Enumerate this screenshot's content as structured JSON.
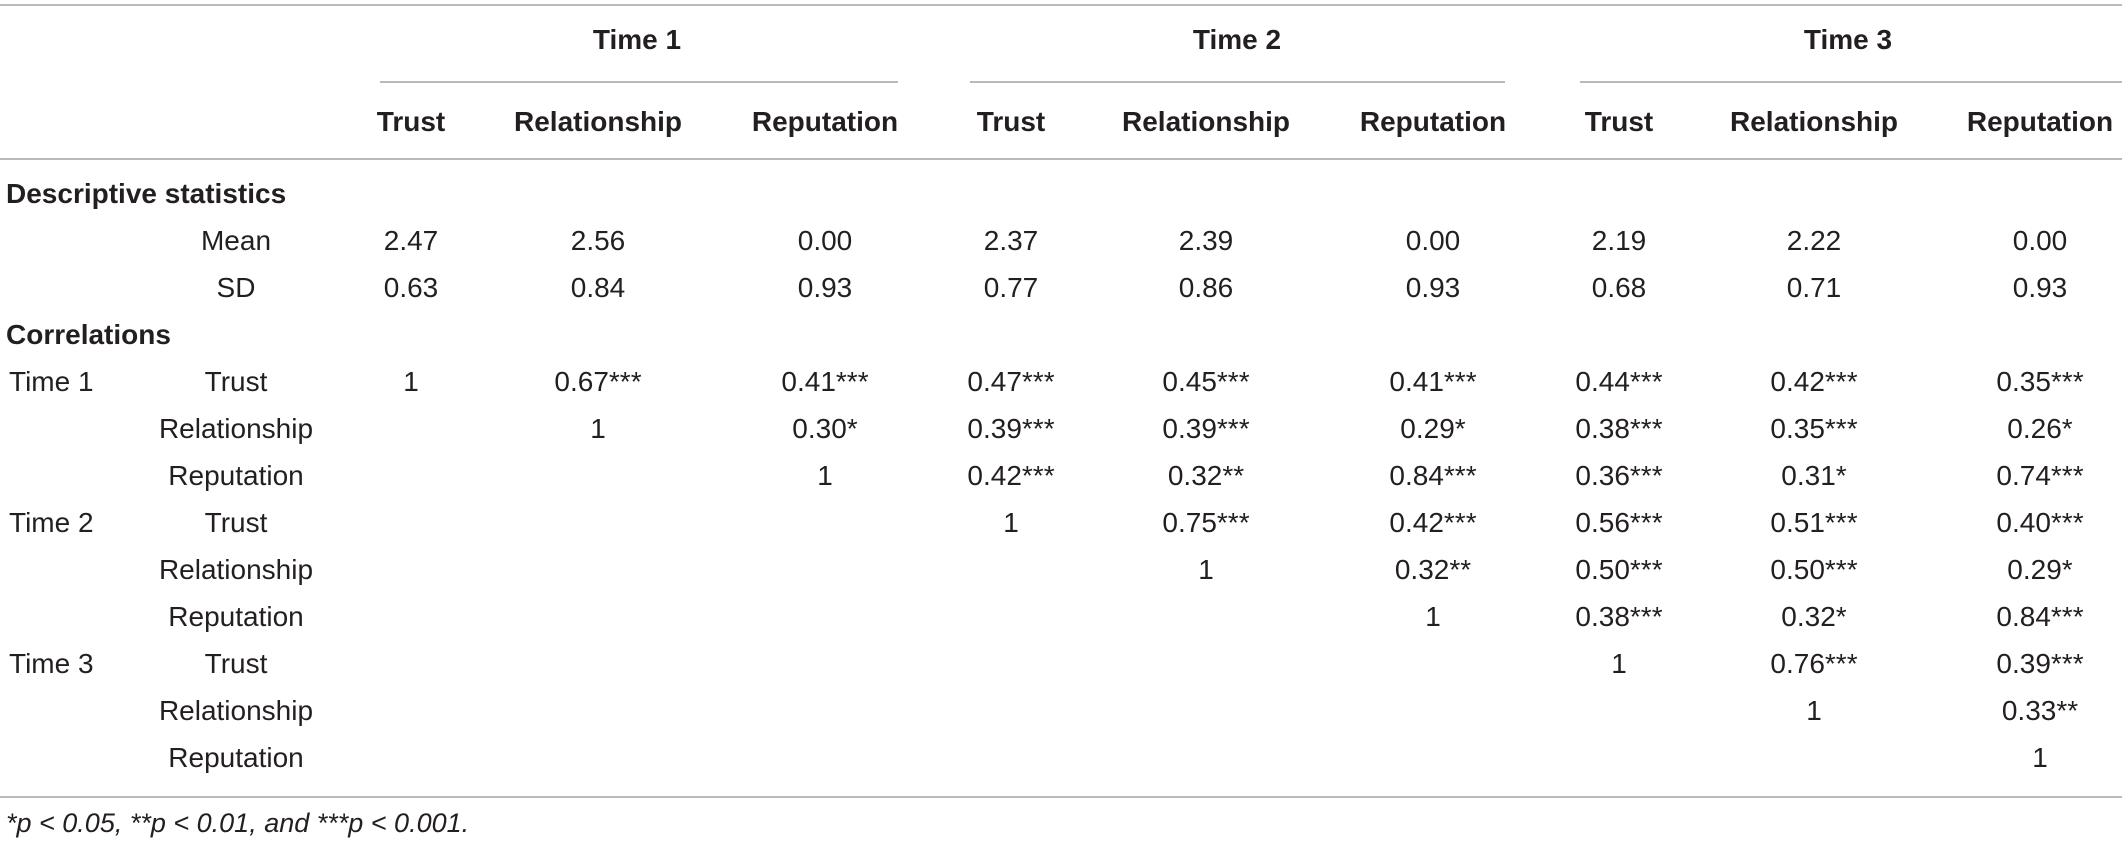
{
  "table": {
    "times": [
      "Time 1",
      "Time 2",
      "Time 3"
    ],
    "subheaders": [
      [
        "Trust",
        "Relationship",
        "Reputation"
      ],
      [
        "Trust",
        "Relationship",
        "Reputation"
      ],
      [
        "Trust",
        "Relationship",
        "Reputation"
      ]
    ],
    "section_descriptive": "Descriptive statistics",
    "section_correlations": "Correlations",
    "desc_rows": [
      {
        "label": "Mean",
        "cells": [
          "2.47",
          "2.56",
          "0.00",
          "2.37",
          "2.39",
          "0.00",
          "2.19",
          "2.22",
          "0.00"
        ]
      },
      {
        "label": "SD",
        "cells": [
          "0.63",
          "0.84",
          "0.93",
          "0.77",
          "0.86",
          "0.93",
          "0.68",
          "0.71",
          "0.93"
        ]
      }
    ],
    "corr_rows": [
      {
        "group": "Time 1",
        "label": "Trust",
        "cells": [
          "1",
          "0.67***",
          "0.41***",
          "0.47***",
          "0.45***",
          "0.41***",
          "0.44***",
          "0.42***",
          "0.35***"
        ]
      },
      {
        "group": "",
        "label": "Relationship",
        "cells": [
          "",
          "1",
          "0.30*",
          "0.39***",
          "0.39***",
          "0.29*",
          "0.38***",
          "0.35***",
          "0.26*"
        ]
      },
      {
        "group": "",
        "label": "Reputation",
        "cells": [
          "",
          "",
          "1",
          "0.42***",
          "0.32**",
          "0.84***",
          "0.36***",
          "0.31*",
          "0.74***"
        ]
      },
      {
        "group": "Time 2",
        "label": "Trust",
        "cells": [
          "",
          "",
          "",
          "1",
          "0.75***",
          "0.42***",
          "0.56***",
          "0.51***",
          "0.40***"
        ]
      },
      {
        "group": "",
        "label": "Relationship",
        "cells": [
          "",
          "",
          "",
          "",
          "1",
          "0.32**",
          "0.50***",
          "0.50***",
          "0.29*"
        ]
      },
      {
        "group": "",
        "label": "Reputation",
        "cells": [
          "",
          "",
          "",
          "",
          "",
          "1",
          "0.38***",
          "0.32*",
          "0.84***"
        ]
      },
      {
        "group": "Time 3",
        "label": "Trust",
        "cells": [
          "",
          "",
          "",
          "",
          "",
          "",
          "1",
          "0.76***",
          "0.39***"
        ]
      },
      {
        "group": "",
        "label": "Relationship",
        "cells": [
          "",
          "",
          "",
          "",
          "",
          "",
          "",
          "1",
          "0.33**"
        ]
      },
      {
        "group": "",
        "label": "Reputation",
        "cells": [
          "",
          "",
          "",
          "",
          "",
          "",
          "",
          "",
          "1"
        ]
      }
    ],
    "footnote": "*p < 0.05, **p < 0.01, and ***p < 0.001."
  }
}
